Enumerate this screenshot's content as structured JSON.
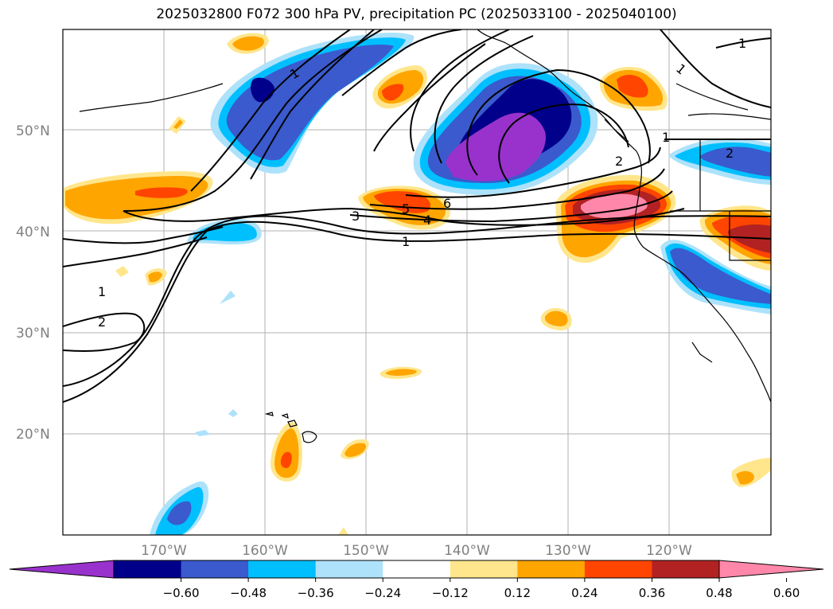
{
  "title": "2025032800 F072 300 hPa PV, precipitation PC (2025033100 - 2025040100)",
  "lat_labels": [
    "50°N",
    "40°N",
    "30°N",
    "20°N"
  ],
  "lon_labels": [
    "170°W",
    "160°W",
    "150°W",
    "140°W",
    "130°W",
    "120°W"
  ],
  "contour_labels": [
    "1",
    "2",
    "3",
    "4",
    "5",
    "6",
    "1",
    "2",
    "1",
    "2",
    "1"
  ],
  "colorbar": {
    "ticks": [
      "−0.60",
      "−0.48",
      "−0.36",
      "−0.24",
      "−0.12",
      "0.12",
      "0.24",
      "0.36",
      "0.48",
      "0.60"
    ],
    "colors": [
      "#9932cc",
      "#00008b",
      "#3a5acd",
      "#00bfff",
      "#ade2fa",
      "#ffffff",
      "#ffe68c",
      "#ffa500",
      "#ff4500",
      "#b22222",
      "#ff88aa"
    ]
  }
}
